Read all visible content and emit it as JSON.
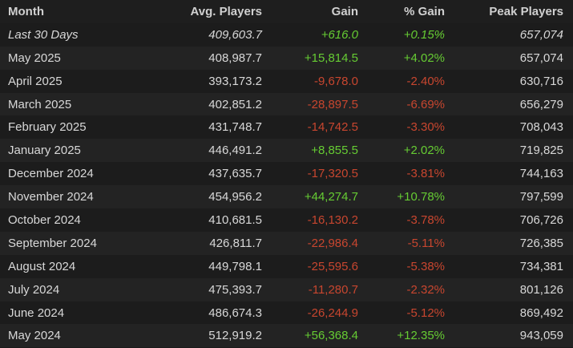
{
  "table": {
    "headers": [
      "Month",
      "Avg. Players",
      "Gain",
      "% Gain",
      "Peak Players"
    ],
    "rows": [
      [
        "Last 30 Days",
        "409,603.7",
        "+616.0",
        "+0.15%",
        "657,074"
      ],
      [
        "May 2025",
        "408,987.7",
        "+15,814.5",
        "+4.02%",
        "657,074"
      ],
      [
        "April 2025",
        "393,173.2",
        "-9,678.0",
        "-2.40%",
        "630,716"
      ],
      [
        "March 2025",
        "402,851.2",
        "-28,897.5",
        "-6.69%",
        "656,279"
      ],
      [
        "February 2025",
        "431,748.7",
        "-14,742.5",
        "-3.30%",
        "708,043"
      ],
      [
        "January 2025",
        "446,491.2",
        "+8,855.5",
        "+2.02%",
        "719,825"
      ],
      [
        "December 2024",
        "437,635.7",
        "-17,320.5",
        "-3.81%",
        "744,163"
      ],
      [
        "November 2024",
        "454,956.2",
        "+44,274.7",
        "+10.78%",
        "797,599"
      ],
      [
        "October 2024",
        "410,681.5",
        "-16,130.2",
        "-3.78%",
        "706,726"
      ],
      [
        "September 2024",
        "426,811.7",
        "-22,986.4",
        "-5.11%",
        "726,385"
      ],
      [
        "August 2024",
        "449,798.1",
        "-25,595.6",
        "-5.38%",
        "734,381"
      ],
      [
        "July 2024",
        "475,393.7",
        "-11,280.7",
        "-2.32%",
        "801,126"
      ],
      [
        "June 2024",
        "486,674.3",
        "-26,244.9",
        "-5.12%",
        "869,492"
      ],
      [
        "May 2024",
        "512,919.2",
        "+56,368.4",
        "+12.35%",
        "943,059"
      ]
    ]
  }
}
